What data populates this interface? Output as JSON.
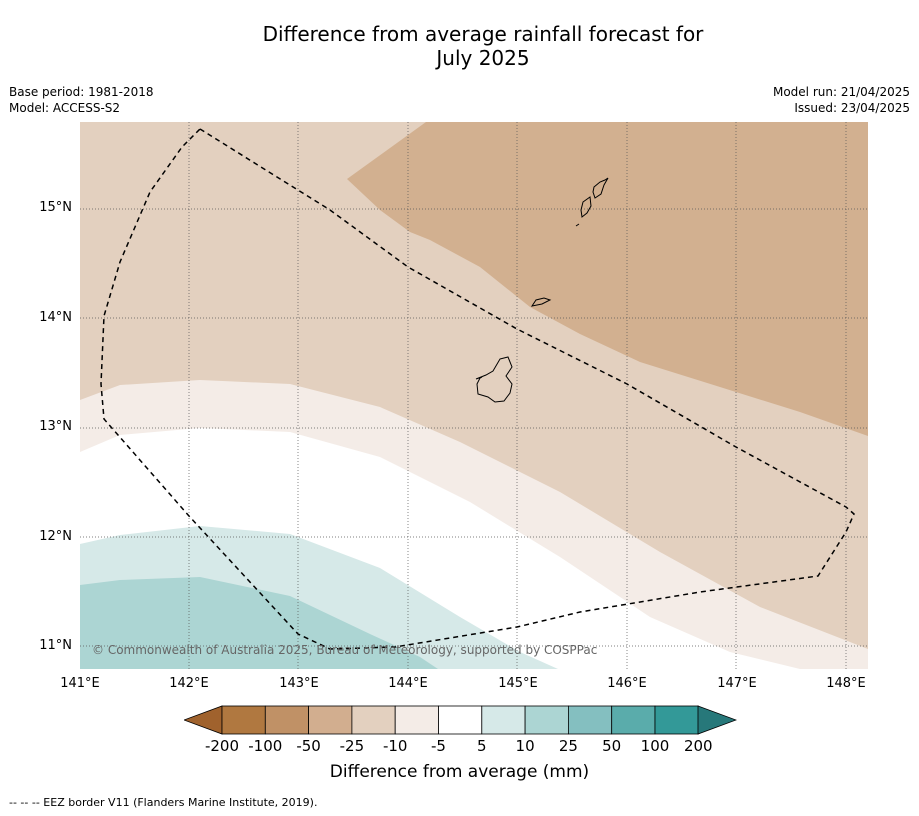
{
  "title_line1": "Difference from average rainfall forecast for",
  "title_line2": "July 2025",
  "meta_left": {
    "base_period": "Base period: 1981-2018",
    "model": "Model: ACCESS-S2"
  },
  "meta_right": {
    "model_run": "Model run: 21/04/2025",
    "issued": "Issued: 23/04/2025"
  },
  "copyright": "© Commonwealth of Australia 2025, Bureau of Meteorology, supported by COSPPac",
  "lat_labels": [
    "15°N",
    "14°N",
    "13°N",
    "12°N",
    "11°N"
  ],
  "lon_labels": [
    "141°E",
    "142°E",
    "143°E",
    "144°E",
    "145°E",
    "146°E",
    "147°E",
    "148°E"
  ],
  "colorbar": {
    "title": "Difference from average (mm)",
    "ticks": [
      "-200",
      "-100",
      "-50",
      "-25",
      "-10",
      "-5",
      "5",
      "10",
      "25",
      "50",
      "100",
      "200"
    ],
    "colors": [
      "#a0622d",
      "#b07840",
      "#c09166",
      "#d2ae8f",
      "#e3d0bf",
      "#f4ece7",
      "#ffffff",
      "#d6e9e8",
      "#acd5d3",
      "#84bfc0",
      "#5aacab",
      "#339998",
      "#27787a"
    ]
  },
  "footnote": "-- -- -- EEZ border V11 (Flanders Marine Institute, 2019)."
}
